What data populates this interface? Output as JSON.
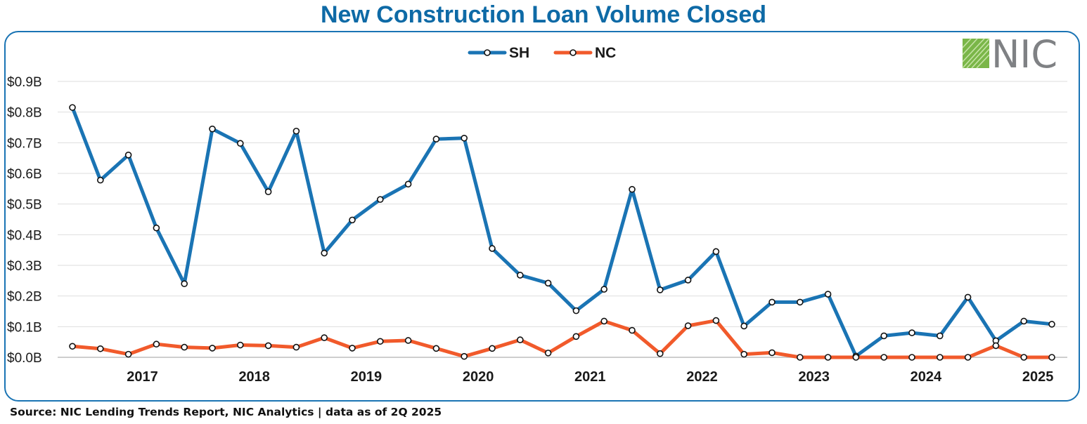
{
  "title": "New Construction Loan Volume Closed",
  "source": "Source: NIC Lending Trends Report, NIC Analytics | data as of 2Q 2025",
  "logo_text": "NIC",
  "colors": {
    "SH": "#1a74b4",
    "NC": "#f15a2b",
    "title": "#0e6aa6",
    "frame": "#1a74b4",
    "logo_mark": "#7ab648"
  },
  "chart_data": {
    "type": "line",
    "title": "New Construction Loan Volume Closed",
    "xlabel": "",
    "ylabel": "",
    "ylim": [
      0,
      0.9
    ],
    "y_ticks": [
      "$0.0B",
      "$0.1B",
      "$0.2B",
      "$0.3B",
      "$0.4B",
      "$0.5B",
      "$0.6B",
      "$0.7B",
      "$0.8B",
      "$0.9B"
    ],
    "x_ticks": [
      "2017",
      "2018",
      "2019",
      "2020",
      "2021",
      "2022",
      "2023",
      "2024",
      "2025"
    ],
    "grid": true,
    "legend_position": "top-center",
    "series": [
      {
        "name": "SH",
        "values": [
          0.815,
          0.578,
          0.66,
          0.422,
          0.24,
          0.745,
          0.698,
          0.54,
          0.738,
          0.34,
          0.448,
          0.515,
          0.565,
          0.712,
          0.715,
          0.355,
          0.268,
          0.242,
          0.152,
          0.222,
          0.548,
          0.22,
          0.252,
          0.345,
          0.102,
          0.18,
          0.18,
          0.206,
          0.004,
          0.07,
          0.08,
          0.07,
          0.196,
          0.054,
          0.118,
          0.108
        ]
      },
      {
        "name": "NC",
        "values": [
          0.036,
          0.028,
          0.01,
          0.043,
          0.033,
          0.03,
          0.04,
          0.038,
          0.033,
          0.064,
          0.03,
          0.052,
          0.055,
          0.029,
          0.003,
          0.029,
          0.057,
          0.014,
          0.068,
          0.118,
          0.088,
          0.012,
          0.103,
          0.12,
          0.01,
          0.015,
          0.0,
          0.0,
          0.0,
          0.0,
          0.0,
          0.0,
          0.0,
          0.038,
          0.0,
          0.0
        ]
      }
    ]
  }
}
